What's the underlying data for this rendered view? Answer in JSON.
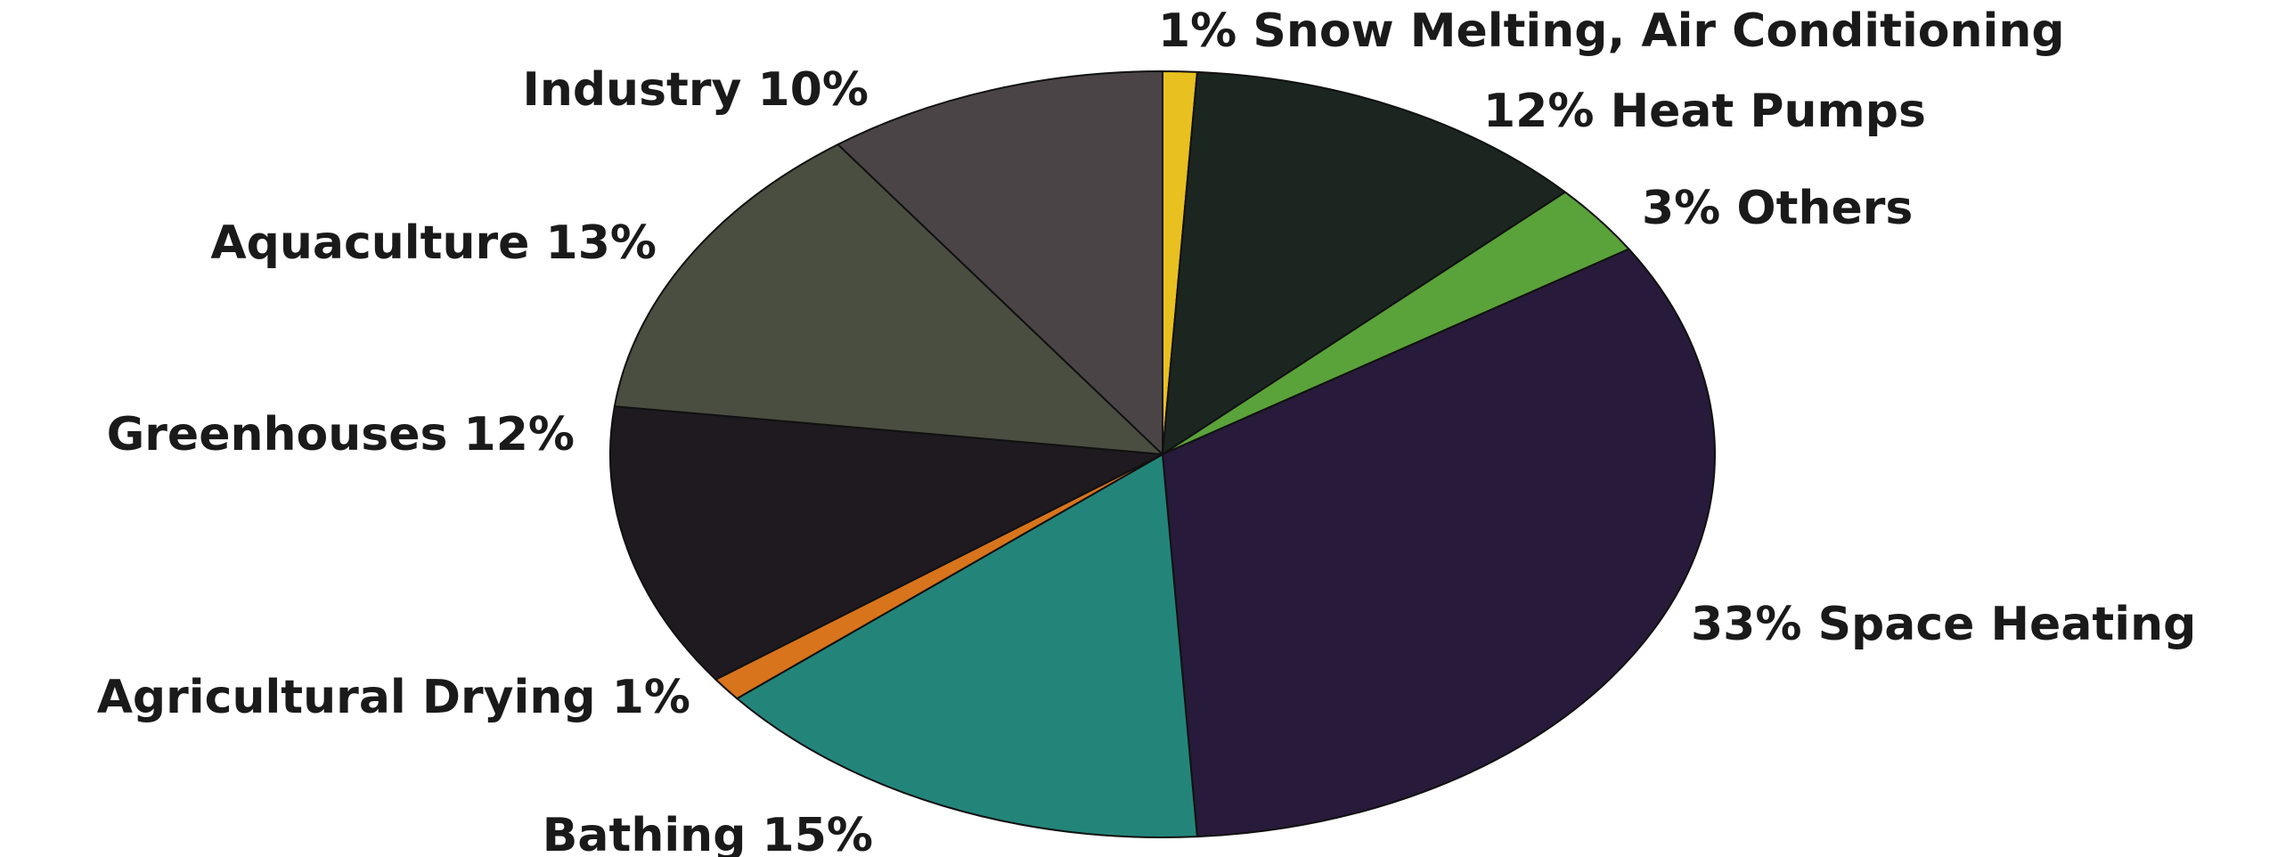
{
  "chart_data": {
    "type": "pie",
    "slices": [
      {
        "label": "1% Snow Melting, Air Conditioning",
        "value": 1,
        "color": "#e8c020"
      },
      {
        "label": "12% Heat Pumps",
        "value": 12,
        "color": "#1c2620"
      },
      {
        "label": "3% Others",
        "value": 3,
        "color": "#5aa23a"
      },
      {
        "label": "33% Space Heating",
        "value": 33,
        "color": "#281a3a"
      },
      {
        "label": "Bathing 15%",
        "value": 15,
        "color": "#23857a"
      },
      {
        "label": "Agricultural Drying 1%",
        "value": 1,
        "color": "#d8741c"
      },
      {
        "label": "Greenhouses 12%",
        "value": 12,
        "color": "#1e1a20"
      },
      {
        "label": "Aquaculture 13%",
        "value": 13,
        "color": "#4a4e40"
      },
      {
        "label": "Industry 10%",
        "value": 10,
        "color": "#4a4446"
      }
    ]
  }
}
